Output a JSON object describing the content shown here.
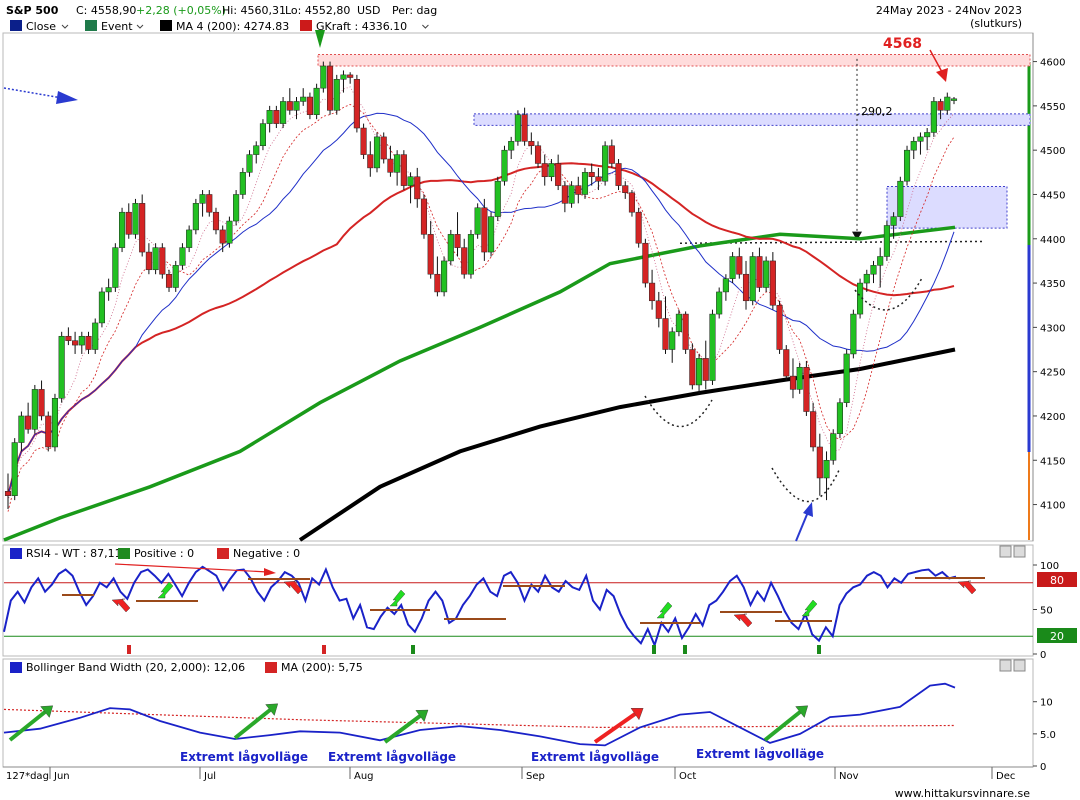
{
  "header": {
    "symbol": "S&P 500",
    "close_label": "C: 4558,90",
    "change": "+2,28 (+0,05%)",
    "high": "Hi: 4560,31",
    "low": "Lo: 4552,80",
    "currency": "USD",
    "period": "Per: dag",
    "date_range": "24May 2023 - 24Nov 2023",
    "date_note": "(slutkurs)"
  },
  "legend": [
    {
      "label": "Close",
      "color": "#0b1f8a",
      "dropdown": true
    },
    {
      "label": "Event",
      "color": "#1f7a4a",
      "dropdown": true
    },
    {
      "label": "MA 4 (200): 4274.83",
      "color": "#000000",
      "dropdown": true
    },
    {
      "label": "GKraft : 4336.10",
      "color": "#cc1a1a",
      "dropdown": true
    }
  ],
  "annotations": {
    "top_label": "4568",
    "gap_label": "290,2"
  },
  "colors": {
    "up": "#22c022",
    "down": "#d42424",
    "ma_fast": "#1f2fc8",
    "ma_mid": "#d42424",
    "ma_slow": "#1a9a1a",
    "ma_long": "#000000",
    "rsi": "#1a22c8",
    "arrow_green": "#22dd22",
    "arrow_red": "#ee2222"
  },
  "rsi_panel": {
    "legend": [
      {
        "label": "RSI4 - WT : 87,11",
        "color": "#1a22c8"
      },
      {
        "label": "Positive : 0",
        "color": "#1f8a1f"
      },
      {
        "label": "Negative : 0",
        "color": "#d42424"
      }
    ],
    "upper_badge": "80",
    "lower_badge": "20"
  },
  "bbw_panel": {
    "legend": [
      {
        "label": "Bollinger Band Width (20, 2,000): 12,06",
        "color": "#1a22c8"
      },
      {
        "label": "MA (200): 5,75",
        "color": "#d42424"
      }
    ],
    "notes": [
      "Extremt lågvolläge",
      "Extremt lågvolläge",
      "Extremt lågvolläge",
      "Extremt lågvolläge"
    ]
  },
  "footer": {
    "range_label": "127*dag",
    "watermark": "www.hittakursvinnare.se"
  },
  "chart_data": [
    {
      "type": "line",
      "title": "S&P 500",
      "x_ticks": [
        "Jun",
        "Jul",
        "Aug",
        "Sep",
        "Oct",
        "Nov",
        "Dec"
      ],
      "y_ticks": [
        4100,
        4150,
        4200,
        4250,
        4300,
        4350,
        4400,
        4450,
        4500,
        4550,
        4600
      ],
      "ylim": [
        4060,
        4630
      ],
      "series": [
        {
          "name": "MA 4 (200)",
          "values_approx": [
            [
              5,
              4060
            ],
            [
              60,
              4145
            ],
            [
              90,
              4185
            ],
            [
              120,
              4215
            ],
            [
              150,
              4240
            ],
            [
              170,
              4256
            ],
            [
              190,
              4274.83
            ]
          ]
        }
      ],
      "candles_ohlc": [
        [
          4115,
          4135,
          4095,
          4110
        ],
        [
          4110,
          4175,
          4105,
          4170
        ],
        [
          4170,
          4205,
          4160,
          4200
        ],
        [
          4200,
          4215,
          4180,
          4185
        ],
        [
          4185,
          4235,
          4180,
          4230
        ],
        [
          4230,
          4240,
          4195,
          4200
        ],
        [
          4200,
          4205,
          4160,
          4165
        ],
        [
          4165,
          4225,
          4160,
          4220
        ],
        [
          4220,
          4295,
          4215,
          4290
        ],
        [
          4290,
          4300,
          4280,
          4285
        ],
        [
          4285,
          4295,
          4270,
          4280
        ],
        [
          4280,
          4295,
          4270,
          4290
        ],
        [
          4290,
          4295,
          4270,
          4275
        ],
        [
          4275,
          4310,
          4270,
          4305
        ],
        [
          4305,
          4345,
          4300,
          4340
        ],
        [
          4340,
          4355,
          4330,
          4345
        ],
        [
          4345,
          4395,
          4340,
          4390
        ],
        [
          4390,
          4435,
          4385,
          4430
        ],
        [
          4430,
          4440,
          4400,
          4405
        ],
        [
          4405,
          4445,
          4400,
          4440
        ],
        [
          4440,
          4450,
          4380,
          4385
        ],
        [
          4385,
          4395,
          4360,
          4365
        ],
        [
          4365,
          4395,
          4360,
          4390
        ],
        [
          4390,
          4395,
          4355,
          4360
        ],
        [
          4360,
          4365,
          4340,
          4345
        ],
        [
          4345,
          4375,
          4340,
          4370
        ],
        [
          4370,
          4395,
          4365,
          4390
        ],
        [
          4390,
          4415,
          4385,
          4410
        ],
        [
          4410,
          4445,
          4405,
          4440
        ],
        [
          4440,
          4455,
          4425,
          4450
        ],
        [
          4450,
          4455,
          4425,
          4430
        ],
        [
          4430,
          4435,
          4405,
          4410
        ],
        [
          4410,
          4415,
          4385,
          4395
        ],
        [
          4395,
          4425,
          4390,
          4420
        ],
        [
          4420,
          4455,
          4415,
          4450
        ],
        [
          4450,
          4480,
          4445,
          4475
        ],
        [
          4475,
          4500,
          4470,
          4495
        ],
        [
          4495,
          4510,
          4485,
          4505
        ],
        [
          4505,
          4535,
          4500,
          4530
        ],
        [
          4530,
          4550,
          4520,
          4545
        ],
        [
          4545,
          4550,
          4525,
          4530
        ],
        [
          4530,
          4560,
          4525,
          4555
        ],
        [
          4555,
          4570,
          4540,
          4545
        ],
        [
          4545,
          4560,
          4535,
          4555
        ],
        [
          4555,
          4570,
          4550,
          4560
        ],
        [
          4560,
          4565,
          4535,
          4540
        ],
        [
          4540,
          4575,
          4535,
          4570
        ],
        [
          4570,
          4600,
          4565,
          4595
        ],
        [
          4595,
          4600,
          4540,
          4545
        ],
        [
          4545,
          4585,
          4540,
          4580
        ],
        [
          4580,
          4590,
          4565,
          4585
        ],
        [
          4585,
          4588,
          4575,
          4582
        ],
        [
          4580,
          4585,
          4520,
          4525
        ],
        [
          4525,
          4530,
          4490,
          4495
        ],
        [
          4495,
          4510,
          4470,
          4480
        ],
        [
          4480,
          4520,
          4475,
          4515
        ],
        [
          4515,
          4520,
          4485,
          4490
        ],
        [
          4490,
          4505,
          4470,
          4475
        ],
        [
          4475,
          4500,
          4460,
          4495
        ],
        [
          4495,
          4500,
          4455,
          4460
        ],
        [
          4460,
          4475,
          4440,
          4470
        ],
        [
          4470,
          4480,
          4435,
          4445
        ],
        [
          4445,
          4450,
          4400,
          4405
        ],
        [
          4405,
          4420,
          4355,
          4360
        ],
        [
          4360,
          4380,
          4335,
          4340
        ],
        [
          4340,
          4380,
          4335,
          4375
        ],
        [
          4375,
          4410,
          4370,
          4405
        ],
        [
          4405,
          4430,
          4380,
          4390
        ],
        [
          4390,
          4400,
          4355,
          4360
        ],
        [
          4360,
          4410,
          4355,
          4405
        ],
        [
          4405,
          4440,
          4400,
          4435
        ],
        [
          4435,
          4445,
          4375,
          4385
        ],
        [
          4385,
          4430,
          4380,
          4425
        ],
        [
          4425,
          4470,
          4420,
          4465
        ],
        [
          4465,
          4505,
          4460,
          4500
        ],
        [
          4500,
          4515,
          4490,
          4510
        ],
        [
          4510,
          4545,
          4505,
          4540
        ],
        [
          4540,
          4548,
          4505,
          4510
        ],
        [
          4510,
          4520,
          4495,
          4505
        ],
        [
          4505,
          4510,
          4480,
          4485
        ],
        [
          4485,
          4495,
          4460,
          4470
        ],
        [
          4470,
          4490,
          4465,
          4485
        ],
        [
          4485,
          4495,
          4455,
          4460
        ],
        [
          4460,
          4465,
          4430,
          4440
        ],
        [
          4440,
          4465,
          4435,
          4460
        ],
        [
          4460,
          4470,
          4440,
          4450
        ],
        [
          4450,
          4480,
          4445,
          4475
        ],
        [
          4475,
          4485,
          4460,
          4470
        ],
        [
          4470,
          4480,
          4455,
          4465
        ],
        [
          4465,
          4510,
          4460,
          4505
        ],
        [
          4505,
          4512,
          4480,
          4485
        ],
        [
          4485,
          4490,
          4455,
          4460
        ],
        [
          4460,
          4465,
          4445,
          4452
        ],
        [
          4452,
          4455,
          4425,
          4430
        ],
        [
          4430,
          4435,
          4390,
          4395
        ],
        [
          4395,
          4400,
          4345,
          4350
        ],
        [
          4350,
          4365,
          4320,
          4330
        ],
        [
          4330,
          4340,
          4300,
          4310
        ],
        [
          4310,
          4335,
          4270,
          4275
        ],
        [
          4275,
          4300,
          4260,
          4295
        ],
        [
          4295,
          4320,
          4290,
          4315
        ],
        [
          4315,
          4318,
          4270,
          4275
        ],
        [
          4275,
          4282,
          4230,
          4235
        ],
        [
          4235,
          4270,
          4225,
          4265
        ],
        [
          4265,
          4285,
          4230,
          4240
        ],
        [
          4240,
          4320,
          4235,
          4315
        ],
        [
          4315,
          4345,
          4310,
          4340
        ],
        [
          4340,
          4360,
          4330,
          4355
        ],
        [
          4355,
          4385,
          4350,
          4380
        ],
        [
          4380,
          4390,
          4355,
          4360
        ],
        [
          4360,
          4375,
          4320,
          4330
        ],
        [
          4330,
          4385,
          4325,
          4380
        ],
        [
          4380,
          4390,
          4340,
          4345
        ],
        [
          4345,
          4380,
          4340,
          4375
        ],
        [
          4375,
          4385,
          4320,
          4325
        ],
        [
          4325,
          4330,
          4270,
          4275
        ],
        [
          4275,
          4280,
          4240,
          4245
        ],
        [
          4245,
          4265,
          4220,
          4230
        ],
        [
          4230,
          4260,
          4225,
          4255
        ],
        [
          4255,
          4262,
          4200,
          4205
        ],
        [
          4205,
          4215,
          4160,
          4165
        ],
        [
          4165,
          4180,
          4110,
          4130
        ],
        [
          4130,
          4160,
          4105,
          4150
        ],
        [
          4150,
          4185,
          4145,
          4180
        ],
        [
          4180,
          4220,
          4175,
          4215
        ],
        [
          4215,
          4275,
          4210,
          4270
        ],
        [
          4270,
          4320,
          4265,
          4315
        ],
        [
          4315,
          4355,
          4310,
          4350
        ],
        [
          4350,
          4365,
          4340,
          4360
        ],
        [
          4360,
          4375,
          4350,
          4370
        ],
        [
          4370,
          4390,
          4345,
          4380
        ],
        [
          4380,
          4420,
          4375,
          4415
        ],
        [
          4415,
          4430,
          4400,
          4425
        ],
        [
          4425,
          4470,
          4420,
          4465
        ],
        [
          4465,
          4505,
          4460,
          4500
        ],
        [
          4500,
          4515,
          4490,
          4510
        ],
        [
          4510,
          4520,
          4495,
          4515
        ],
        [
          4515,
          4525,
          4500,
          4520
        ],
        [
          4520,
          4560,
          4515,
          4555
        ],
        [
          4555,
          4558,
          4535,
          4545
        ],
        [
          4545,
          4565,
          4540,
          4560
        ],
        [
          4556,
          4560,
          4552,
          4558
        ]
      ]
    },
    {
      "type": "line",
      "title": "RSI4 - WT",
      "y_ticks": [
        0,
        20,
        50,
        80,
        100
      ],
      "ylim": [
        0,
        100
      ],
      "series": [
        {
          "name": "RSI4 - WT",
          "last": 87.11
        }
      ]
    },
    {
      "type": "line",
      "title": "Bollinger Band Width (20, 2,000)",
      "y_ticks": [
        0,
        5.0,
        10
      ],
      "ylim": [
        0,
        14
      ],
      "series": [
        {
          "name": "Bollinger Band Width",
          "last": 12.06
        },
        {
          "name": "MA (200)",
          "last": 5.75
        }
      ]
    }
  ]
}
